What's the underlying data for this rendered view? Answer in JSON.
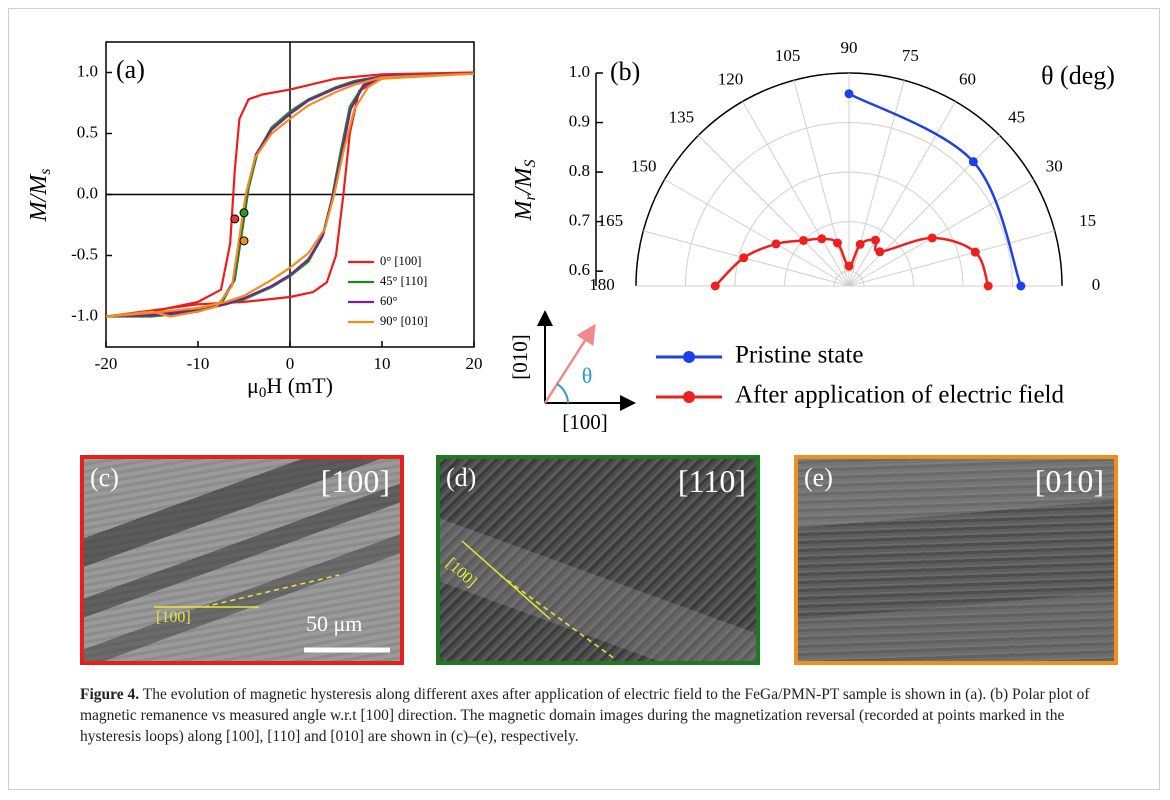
{
  "chart_data": [
    {
      "type": "line",
      "panel_label": "(a)",
      "x_label": [
        "μ",
        "0",
        "H (mT)"
      ],
      "y_label": [
        "M/M",
        "s"
      ],
      "xlim": [
        -20,
        20
      ],
      "ylim": [
        -1.25,
        1.25
      ],
      "xticks": [
        -20,
        -10,
        0,
        10,
        20
      ],
      "yticks": [
        {
          "value": 1,
          "label": "1.0"
        },
        {
          "value": 0.5,
          "label": "0.5"
        },
        {
          "value": 0,
          "label": "0.0"
        },
        {
          "value": -0.5,
          "label": "-0.5"
        },
        {
          "value": -1,
          "label": "-1.0"
        }
      ],
      "zero_lines": true,
      "legend": "lower right",
      "series": [
        {
          "name": "0° [100]",
          "color": "#f01c1c",
          "x": [
            20,
            10,
            5,
            0,
            -3,
            -4.5,
            -5.5,
            -6,
            -6.5,
            -7.5,
            -10,
            -15,
            -20,
            -10,
            -5,
            0,
            2.5,
            4,
            5,
            5.8,
            6.5,
            7.5,
            10,
            20
          ],
          "values": [
            1.0,
            0.985,
            0.95,
            0.86,
            0.82,
            0.78,
            0.62,
            0.2,
            -0.4,
            -0.78,
            -0.88,
            -0.96,
            -1.0,
            -0.9,
            -0.88,
            -0.84,
            -0.8,
            -0.72,
            -0.5,
            0.0,
            0.5,
            0.85,
            0.95,
            1.0
          ]
        },
        {
          "name": "45° [110]",
          "color": "#1a8a1a",
          "x": [
            20,
            10,
            7,
            5,
            2,
            0,
            -2,
            -3.5,
            -4.5,
            -5.2,
            -6,
            -7.5,
            -10,
            -15,
            -20,
            -15,
            -10,
            -7,
            -5,
            -2,
            0,
            2,
            3.5,
            4.5,
            5.5,
            6.5,
            8,
            10,
            20
          ],
          "values": [
            0.99,
            0.97,
            0.93,
            0.88,
            0.78,
            0.68,
            0.55,
            0.35,
            0.05,
            -0.3,
            -0.7,
            -0.9,
            -0.96,
            -1.0,
            -1.0,
            -0.98,
            -0.95,
            -0.9,
            -0.86,
            -0.76,
            -0.67,
            -0.55,
            -0.35,
            -0.05,
            0.35,
            0.72,
            0.9,
            0.96,
            0.99
          ]
        },
        {
          "name": "60°",
          "color": "#7a1f9a",
          "x": [
            20,
            10,
            7,
            5,
            2,
            0,
            -2,
            -3.7,
            -4.7,
            -5.4,
            -6.2,
            -7.7,
            -10,
            -15,
            -20,
            -15,
            -10,
            -7,
            -5,
            -2,
            0,
            2,
            3.6,
            4.6,
            5.6,
            6.6,
            8,
            10,
            20
          ],
          "values": [
            0.99,
            0.97,
            0.92,
            0.87,
            0.77,
            0.66,
            0.53,
            0.33,
            0.03,
            -0.32,
            -0.72,
            -0.9,
            -0.96,
            -0.99,
            -1.0,
            -0.98,
            -0.95,
            -0.9,
            -0.85,
            -0.75,
            -0.66,
            -0.53,
            -0.33,
            -0.03,
            0.33,
            0.7,
            0.89,
            0.96,
            0.99
          ]
        },
        {
          "name": "90° [010]",
          "color": "#f0901c",
          "x": [
            20,
            10,
            7,
            5,
            2,
            0,
            -2,
            -3.8,
            -4.8,
            -5.5,
            -6.3,
            -8,
            -10,
            -13,
            -15,
            -20,
            -15,
            -10,
            -7,
            -5,
            -2,
            0,
            2,
            3.8,
            4.8,
            5.8,
            7,
            8.5,
            10,
            20
          ],
          "values": [
            0.99,
            0.96,
            0.9,
            0.84,
            0.73,
            0.62,
            0.5,
            0.3,
            0.0,
            -0.35,
            -0.75,
            -0.92,
            -0.96,
            -1.0,
            -0.96,
            -1.0,
            -0.97,
            -0.93,
            -0.88,
            -0.83,
            -0.7,
            -0.6,
            -0.48,
            -0.28,
            0.0,
            0.35,
            0.7,
            0.88,
            0.95,
            0.99
          ]
        }
      ],
      "markers": [
        {
          "x": -6,
          "y": -0.2,
          "color": "#e03a2a"
        },
        {
          "x": -5,
          "y": -0.15,
          "color": "#2a9a2a"
        },
        {
          "x": -5,
          "y": -0.38,
          "color": "#f0901c"
        }
      ]
    },
    {
      "type": "polar",
      "panel_label": "(b)",
      "angle_label": "θ (deg)",
      "r_label": [
        "M",
        "r",
        "/M",
        "S"
      ],
      "rlim": [
        0.57,
        1.0
      ],
      "rticks": [
        {
          "value": 0.6,
          "label": "0.6"
        },
        {
          "value": 0.7,
          "label": "0.7"
        },
        {
          "value": 0.8,
          "label": "0.8"
        },
        {
          "value": 0.9,
          "label": "0.9"
        },
        {
          "value": 1,
          "label": "1.0"
        }
      ],
      "angle_ticks": [
        0,
        15,
        30,
        45,
        60,
        75,
        90,
        105,
        120,
        135,
        150,
        165,
        180
      ],
      "series": [
        {
          "name": "Pristine state",
          "color": "#1f3fe8",
          "theta": [
            0,
            45,
            90
          ],
          "values": [
            0.917,
            0.925,
            0.958
          ]
        },
        {
          "name": "After application of electric field",
          "color": "#f01f1f",
          "theta": [
            0,
            15,
            30,
            48,
            60,
            75,
            90,
            105,
            120,
            135,
            150,
            165,
            180
          ],
          "values": [
            0.851,
            0.834,
            0.764,
            0.663,
            0.677,
            0.657,
            0.61,
            0.66,
            0.68,
            0.7,
            0.74,
            0.79,
            0.84
          ]
        }
      ]
    }
  ],
  "inset": {
    "y_label": "[010]",
    "x_label": "[100]",
    "angle": "θ"
  },
  "images": [
    {
      "label": "(c)",
      "direction": "[100]",
      "axis_label": "[100]",
      "scale_bar": "50 μm",
      "border": "#e8201c"
    },
    {
      "label": "(d)",
      "direction": "[110]",
      "axis_label": "[100]",
      "border": "#1f7a1f"
    },
    {
      "label": "(e)",
      "direction": "[010]",
      "border": "#f0901c"
    }
  ],
  "caption": {
    "label": "Figure 4.",
    "text": " The evolution of magnetic hysteresis along different axes after application of electric field to the FeGa/PMN-PT sample is shown in (a). (b) Polar plot of magnetic remanence vs measured angle w.r.t [100] direction. The magnetic domain images during the magnetization reversal (recorded at points marked in the hysteresis loops) along [100], [110] and [010] are shown in (c)–(e), respectively."
  }
}
